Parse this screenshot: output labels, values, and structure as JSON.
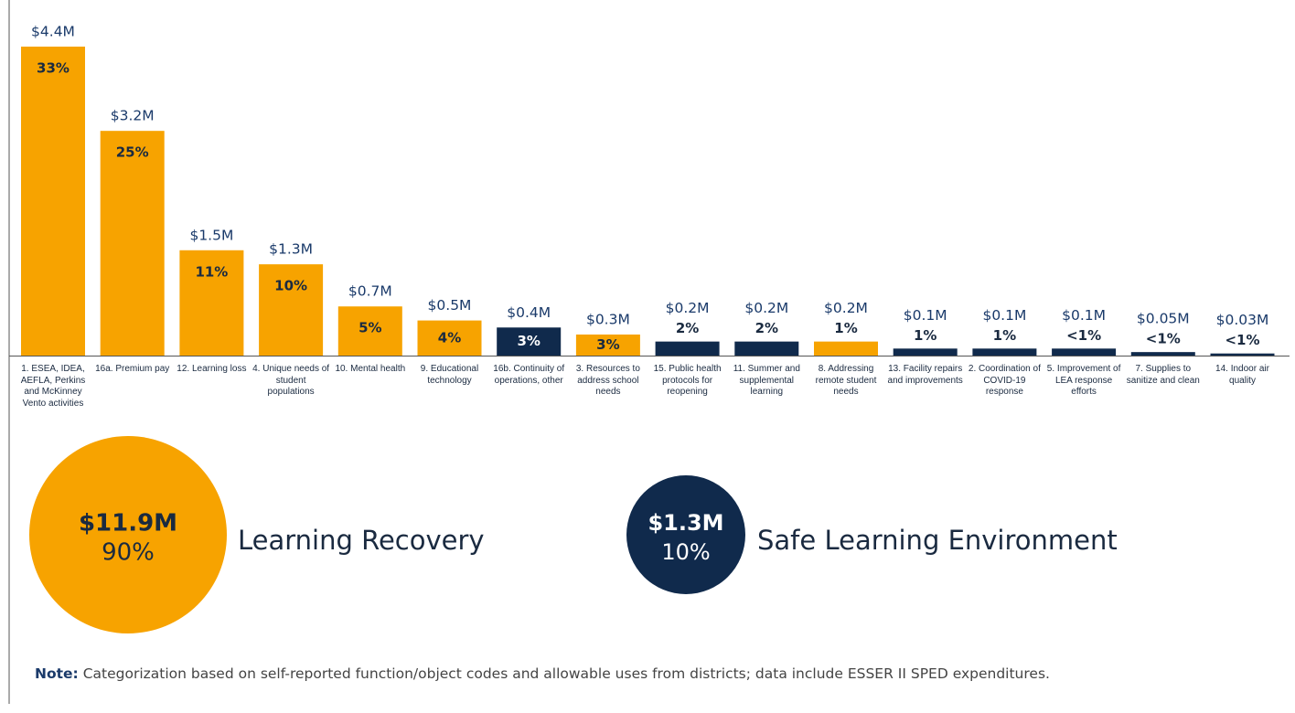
{
  "chart_data": {
    "type": "bar",
    "categories": [
      "1. ESEA, IDEA, AEFLA, Perkins and McKinney Vento activities",
      "16a. Premium pay",
      "12. Learning loss",
      "4. Unique needs of student populations",
      "10. Mental health",
      "9. Educational technology",
      "16b. Continuity of operations, other",
      "3. Resources to address school needs",
      "15. Public health protocols for reopening",
      "11. Summer and supplemental learning",
      "8. Addressing remote student needs",
      "13. Facility repairs and improvements",
      "2. Coordination of COVID-19 response",
      "5. Improvement of LEA response efforts",
      "7. Supplies to sanitize and clean",
      "14. Indoor air quality"
    ],
    "values": [
      4.4,
      3.2,
      1.5,
      1.3,
      0.7,
      0.5,
      0.4,
      0.3,
      0.2,
      0.2,
      0.2,
      0.1,
      0.1,
      0.1,
      0.05,
      0.03
    ],
    "value_labels": [
      "$4.4M",
      "$3.2M",
      "$1.5M",
      "$1.3M",
      "$0.7M",
      "$0.5M",
      "$0.4M",
      "$0.3M",
      "$0.2M",
      "$0.2M",
      "$0.2M",
      "$0.1M",
      "$0.1M",
      "$0.1M",
      "$0.05M",
      "$0.03M"
    ],
    "share_labels": [
      "33%",
      "25%",
      "11%",
      "10%",
      "5%",
      "4%",
      "3%",
      "3%",
      "2%",
      "2%",
      "1%",
      "1%",
      "1%",
      "<1%",
      "<1%",
      "<1%"
    ],
    "colors": [
      "#f7a300",
      "#f7a300",
      "#f7a300",
      "#f7a300",
      "#f7a300",
      "#f7a300",
      "#102a4c",
      "#f7a300",
      "#102a4c",
      "#102a4c",
      "#f7a300",
      "#102a4c",
      "#102a4c",
      "#102a4c",
      "#102a4c",
      "#102a4c"
    ],
    "summary": [
      {
        "name": "Learning Recovery",
        "value": 11.9,
        "value_label": "$11.9M",
        "share": 90,
        "share_label": "90%",
        "color": "#f7a300"
      },
      {
        "name": "Safe Learning Environment",
        "value": 1.3,
        "value_label": "$1.3M",
        "share": 10,
        "share_label": "10%",
        "color": "#102a4c"
      }
    ],
    "note_label": "Note:",
    "note": "Categorization based on self-reported function/object codes and allowable uses from districts; data include ESSER II SPED expenditures."
  }
}
